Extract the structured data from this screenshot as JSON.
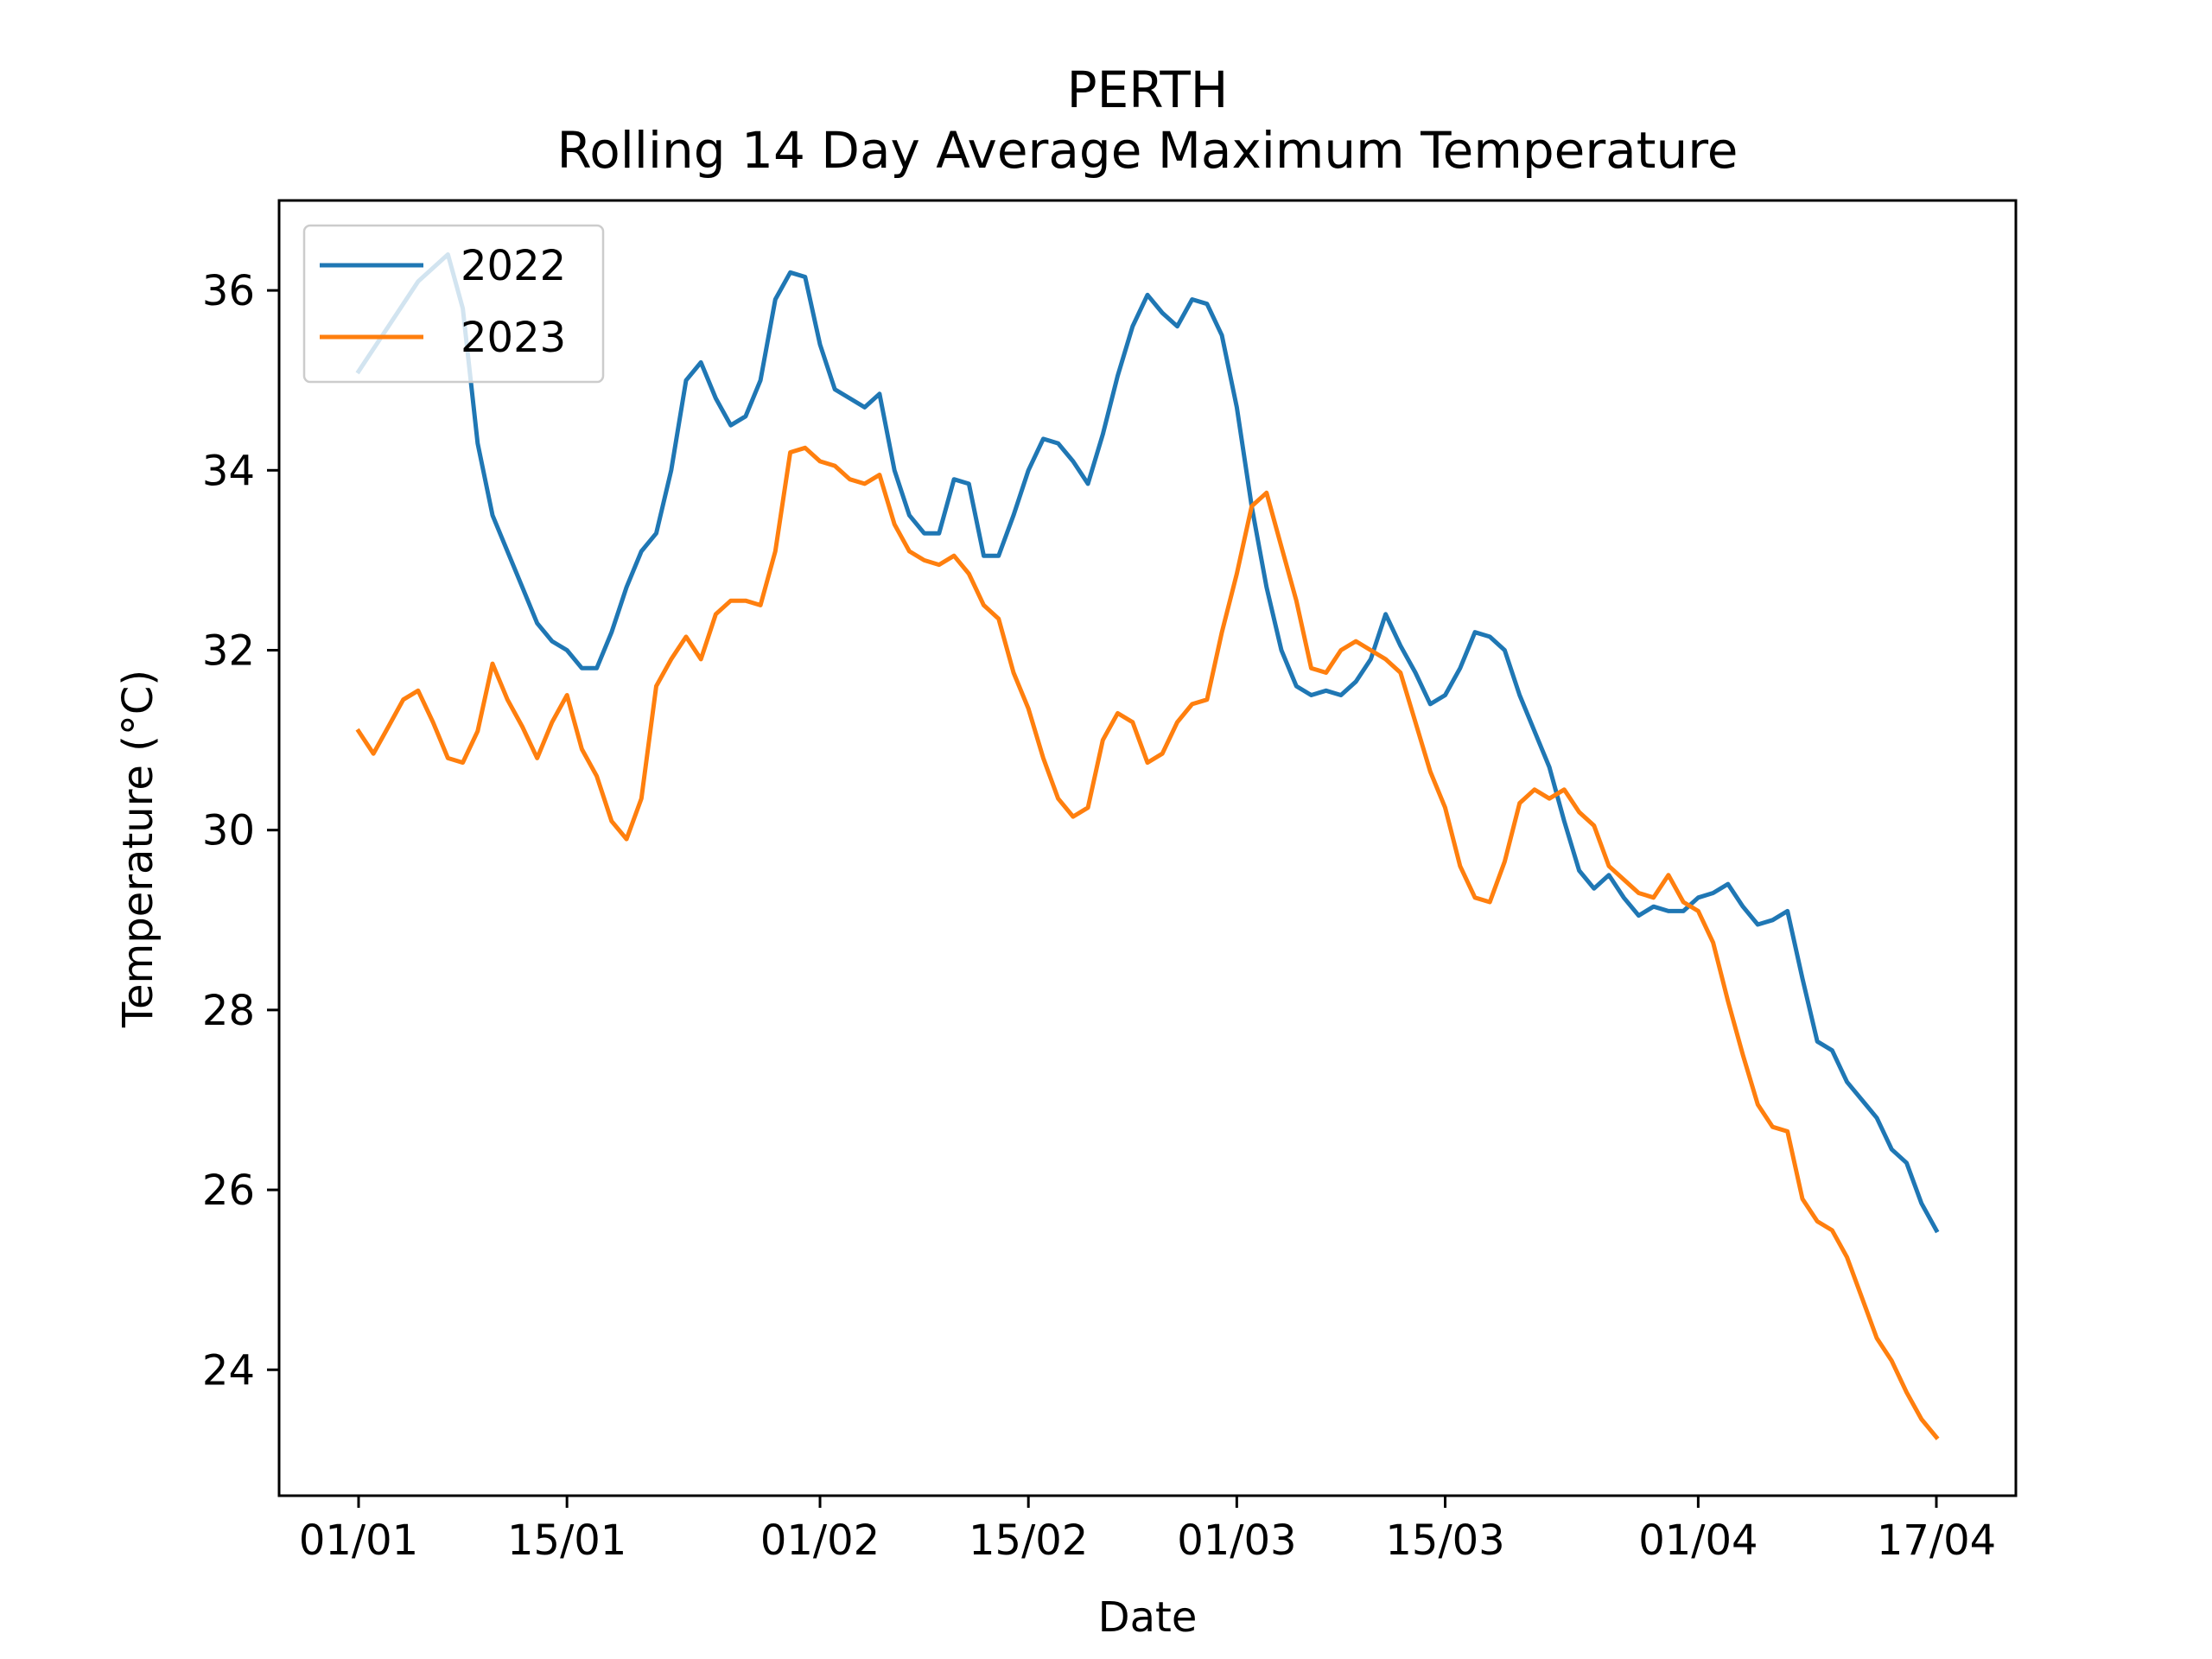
{
  "chart_data": {
    "type": "line",
    "title": "PERTH",
    "subtitle": "Rolling 14 Day Average Maximum Temperature",
    "xlabel": "Date",
    "ylabel": "Temperature (°C)",
    "x_start": "01/01",
    "x_end": "17/04",
    "x_ticks": [
      {
        "x": "01/01",
        "label": "01/01"
      },
      {
        "x": "15/01",
        "label": "15/01"
      },
      {
        "x": "01/02",
        "label": "01/02"
      },
      {
        "x": "15/02",
        "label": "15/02"
      },
      {
        "x": "01/03",
        "label": "01/03"
      },
      {
        "x": "15/03",
        "label": "15/03"
      },
      {
        "x": "01/04",
        "label": "01/04"
      },
      {
        "x": "17/04",
        "label": "17/04"
      }
    ],
    "y_ticks": [
      24,
      26,
      28,
      30,
      32,
      34,
      36
    ],
    "ylim": [
      22.6,
      37.0
    ],
    "grid": false,
    "legend_position": "top-left",
    "series": [
      {
        "name": "2022",
        "color": "#1f77b4",
        "points": [
          [
            "01/01",
            35.1
          ],
          [
            "03/01",
            35.6
          ],
          [
            "05/01",
            36.1
          ],
          [
            "07/01",
            36.4
          ],
          [
            "08/01",
            35.8
          ],
          [
            "09/01",
            34.3
          ],
          [
            "10/01",
            33.5
          ],
          [
            "12/01",
            32.7
          ],
          [
            "13/01",
            32.3
          ],
          [
            "14/01",
            32.1
          ],
          [
            "15/01",
            32.0
          ],
          [
            "16/01",
            31.8
          ],
          [
            "17/01",
            31.8
          ],
          [
            "18/01",
            32.2
          ],
          [
            "19/01",
            32.7
          ],
          [
            "20/01",
            33.1
          ],
          [
            "21/01",
            33.3
          ],
          [
            "22/01",
            34.0
          ],
          [
            "23/01",
            35.0
          ],
          [
            "24/01",
            35.2
          ],
          [
            "25/01",
            34.8
          ],
          [
            "26/01",
            34.5
          ],
          [
            "27/01",
            34.6
          ],
          [
            "28/01",
            35.0
          ],
          [
            "29/01",
            35.9
          ],
          [
            "30/01",
            36.2
          ],
          [
            "31/01",
            36.15
          ],
          [
            "01/02",
            35.4
          ],
          [
            "02/02",
            34.9
          ],
          [
            "03/02",
            34.8
          ],
          [
            "04/02",
            34.7
          ],
          [
            "05/02",
            34.85
          ],
          [
            "06/02",
            34.0
          ],
          [
            "07/02",
            33.5
          ],
          [
            "08/02",
            33.3
          ],
          [
            "09/02",
            33.3
          ],
          [
            "10/02",
            33.9
          ],
          [
            "11/02",
            33.85
          ],
          [
            "12/02",
            33.05
          ],
          [
            "13/02",
            33.05
          ],
          [
            "14/02",
            33.5
          ],
          [
            "15/02",
            34.0
          ],
          [
            "16/02",
            34.35
          ],
          [
            "17/02",
            34.3
          ],
          [
            "18/02",
            34.1
          ],
          [
            "19/02",
            33.85
          ],
          [
            "20/02",
            34.4
          ],
          [
            "21/02",
            35.05
          ],
          [
            "22/02",
            35.6
          ],
          [
            "23/02",
            35.95
          ],
          [
            "24/02",
            35.75
          ],
          [
            "25/02",
            35.6
          ],
          [
            "26/02",
            35.9
          ],
          [
            "27/02",
            35.85
          ],
          [
            "28/02",
            35.5
          ],
          [
            "01/03",
            34.7
          ],
          [
            "02/03",
            33.6
          ],
          [
            "03/03",
            32.7
          ],
          [
            "04/03",
            32.0
          ],
          [
            "05/03",
            31.6
          ],
          [
            "06/03",
            31.5
          ],
          [
            "07/03",
            31.55
          ],
          [
            "08/03",
            31.5
          ],
          [
            "09/03",
            31.65
          ],
          [
            "10/03",
            31.9
          ],
          [
            "11/03",
            32.4
          ],
          [
            "12/03",
            32.05
          ],
          [
            "13/03",
            31.75
          ],
          [
            "14/03",
            31.4
          ],
          [
            "15/03",
            31.5
          ],
          [
            "16/03",
            31.8
          ],
          [
            "17/03",
            32.2
          ],
          [
            "18/03",
            32.15
          ],
          [
            "19/03",
            32.0
          ],
          [
            "20/03",
            31.5
          ],
          [
            "21/03",
            31.1
          ],
          [
            "22/03",
            30.7
          ],
          [
            "23/03",
            30.1
          ],
          [
            "24/03",
            29.55
          ],
          [
            "25/03",
            29.35
          ],
          [
            "26/03",
            29.5
          ],
          [
            "27/03",
            29.25
          ],
          [
            "28/03",
            29.05
          ],
          [
            "29/03",
            29.15
          ],
          [
            "30/03",
            29.1
          ],
          [
            "31/03",
            29.1
          ],
          [
            "01/04",
            29.25
          ],
          [
            "02/04",
            29.3
          ],
          [
            "03/04",
            29.4
          ],
          [
            "04/04",
            29.15
          ],
          [
            "05/04",
            28.95
          ],
          [
            "06/04",
            29.0
          ],
          [
            "07/04",
            29.1
          ],
          [
            "08/04",
            28.35
          ],
          [
            "09/04",
            27.65
          ],
          [
            "10/04",
            27.55
          ],
          [
            "11/04",
            27.2
          ],
          [
            "12/04",
            27.0
          ],
          [
            "13/04",
            26.8
          ],
          [
            "14/04",
            26.45
          ],
          [
            "15/04",
            26.3
          ],
          [
            "16/04",
            25.85
          ],
          [
            "17/04",
            25.55
          ]
        ]
      },
      {
        "name": "2023",
        "color": "#ff7f0e",
        "points": [
          [
            "01/01",
            31.1
          ],
          [
            "02/01",
            30.85
          ],
          [
            "03/01",
            31.15
          ],
          [
            "04/01",
            31.45
          ],
          [
            "05/01",
            31.55
          ],
          [
            "06/01",
            31.2
          ],
          [
            "07/01",
            30.8
          ],
          [
            "08/01",
            30.75
          ],
          [
            "09/01",
            31.1
          ],
          [
            "10/01",
            31.85
          ],
          [
            "11/01",
            31.45
          ],
          [
            "12/01",
            31.15
          ],
          [
            "13/01",
            30.8
          ],
          [
            "14/01",
            31.2
          ],
          [
            "15/01",
            31.5
          ],
          [
            "16/01",
            30.9
          ],
          [
            "17/01",
            30.6
          ],
          [
            "18/01",
            30.1
          ],
          [
            "19/01",
            29.9
          ],
          [
            "20/01",
            30.35
          ],
          [
            "21/01",
            31.6
          ],
          [
            "22/01",
            31.9
          ],
          [
            "23/01",
            32.15
          ],
          [
            "24/01",
            31.9
          ],
          [
            "25/01",
            32.4
          ],
          [
            "26/01",
            32.55
          ],
          [
            "27/01",
            32.55
          ],
          [
            "28/01",
            32.5
          ],
          [
            "29/01",
            33.1
          ],
          [
            "30/01",
            34.2
          ],
          [
            "31/01",
            34.25
          ],
          [
            "01/02",
            34.1
          ],
          [
            "02/02",
            34.05
          ],
          [
            "03/02",
            33.9
          ],
          [
            "04/02",
            33.85
          ],
          [
            "05/02",
            33.95
          ],
          [
            "06/02",
            33.4
          ],
          [
            "07/02",
            33.1
          ],
          [
            "08/02",
            33.0
          ],
          [
            "09/02",
            32.95
          ],
          [
            "10/02",
            33.05
          ],
          [
            "11/02",
            32.85
          ],
          [
            "12/02",
            32.5
          ],
          [
            "13/02",
            32.35
          ],
          [
            "14/02",
            31.75
          ],
          [
            "15/02",
            31.35
          ],
          [
            "16/02",
            30.8
          ],
          [
            "17/02",
            30.35
          ],
          [
            "18/02",
            30.15
          ],
          [
            "19/02",
            30.25
          ],
          [
            "20/02",
            31.0
          ],
          [
            "21/02",
            31.3
          ],
          [
            "22/02",
            31.2
          ],
          [
            "23/02",
            30.75
          ],
          [
            "24/02",
            30.85
          ],
          [
            "25/02",
            31.2
          ],
          [
            "26/02",
            31.4
          ],
          [
            "27/02",
            31.45
          ],
          [
            "28/02",
            32.2
          ],
          [
            "01/03",
            32.85
          ],
          [
            "02/03",
            33.6
          ],
          [
            "03/03",
            33.75
          ],
          [
            "04/03",
            33.15
          ],
          [
            "05/03",
            32.55
          ],
          [
            "06/03",
            31.8
          ],
          [
            "07/03",
            31.75
          ],
          [
            "08/03",
            32.0
          ],
          [
            "09/03",
            32.1
          ],
          [
            "10/03",
            32.0
          ],
          [
            "11/03",
            31.9
          ],
          [
            "12/03",
            31.75
          ],
          [
            "13/03",
            31.2
          ],
          [
            "14/03",
            30.65
          ],
          [
            "15/03",
            30.25
          ],
          [
            "16/03",
            29.6
          ],
          [
            "17/03",
            29.25
          ],
          [
            "18/03",
            29.2
          ],
          [
            "19/03",
            29.65
          ],
          [
            "20/03",
            30.3
          ],
          [
            "21/03",
            30.45
          ],
          [
            "22/03",
            30.35
          ],
          [
            "23/03",
            30.45
          ],
          [
            "24/03",
            30.2
          ],
          [
            "25/03",
            30.05
          ],
          [
            "26/03",
            29.6
          ],
          [
            "27/03",
            29.45
          ],
          [
            "28/03",
            29.3
          ],
          [
            "29/03",
            29.25
          ],
          [
            "30/03",
            29.5
          ],
          [
            "31/03",
            29.2
          ],
          [
            "01/04",
            29.1
          ],
          [
            "02/04",
            28.75
          ],
          [
            "03/04",
            28.1
          ],
          [
            "04/04",
            27.5
          ],
          [
            "05/04",
            26.95
          ],
          [
            "06/04",
            26.7
          ],
          [
            "07/04",
            26.65
          ],
          [
            "08/04",
            25.9
          ],
          [
            "09/04",
            25.65
          ],
          [
            "10/04",
            25.55
          ],
          [
            "11/04",
            25.25
          ],
          [
            "12/04",
            24.8
          ],
          [
            "13/04",
            24.35
          ],
          [
            "14/04",
            24.1
          ],
          [
            "15/04",
            23.75
          ],
          [
            "16/04",
            23.45
          ],
          [
            "17/04",
            23.25
          ]
        ]
      }
    ]
  }
}
